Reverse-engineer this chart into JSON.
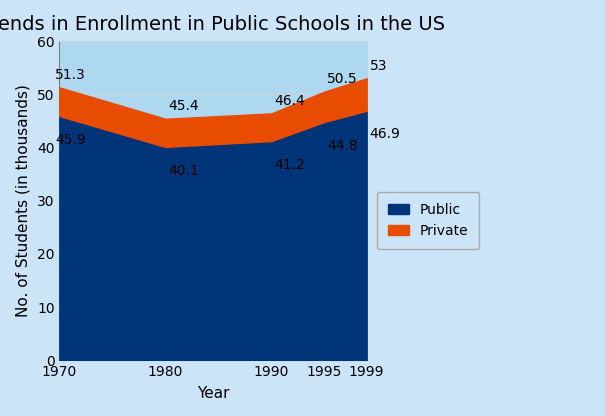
{
  "title": "Trends in Enrollment in Public Schools in the US",
  "xlabel": "Year",
  "ylabel": "No. of Students (in thousands)",
  "years": [
    1970,
    1980,
    1990,
    1995,
    1999
  ],
  "public": [
    45.9,
    40.1,
    41.2,
    44.8,
    46.9
  ],
  "total": [
    51.3,
    45.4,
    46.4,
    50.5,
    53.0
  ],
  "public_color": "#003478",
  "private_color": "#e84c00",
  "above_color": "#add8f0",
  "background_color": "#cce4f7",
  "plot_bg_color": "#cce4f7",
  "ylim": [
    0,
    60
  ],
  "yticks": [
    0,
    10,
    20,
    30,
    40,
    50,
    60
  ],
  "legend_labels": [
    "Public",
    "Private"
  ],
  "title_fontsize": 14,
  "axis_label_fontsize": 11,
  "tick_fontsize": 10,
  "annotation_fontsize": 10,
  "total_labels": [
    "51.3",
    "45.4",
    "46.4",
    "50.5",
    "53"
  ],
  "public_labels": [
    "45.9",
    "40.1",
    "41.2",
    "44.8",
    "46.9"
  ]
}
